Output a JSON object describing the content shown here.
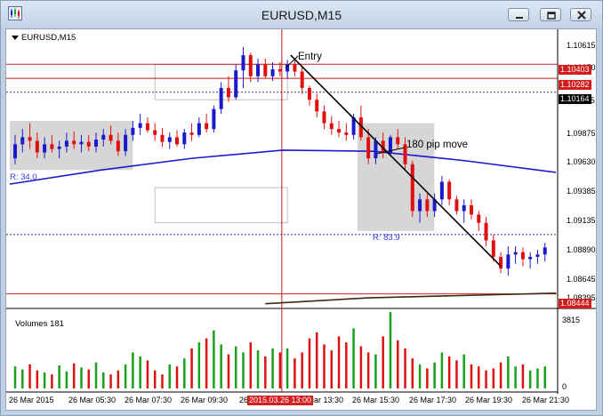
{
  "window": {
    "title": "EURUSD,M15",
    "buttons": [
      "minimize",
      "restore",
      "close"
    ]
  },
  "chart": {
    "symbol_label": "EURUSD,M15",
    "volumes_label": "Volumes 181",
    "price_ticks": [
      "1.10615",
      "1.10370",
      "1.10115",
      "1.09875",
      "1.09630",
      "1.09385",
      "1.09135",
      "1.08890",
      "1.08645",
      "1.08395"
    ],
    "price_boxes": [
      {
        "text": "1.10403",
        "color": "#d21b1b"
      },
      {
        "text": "1.10282",
        "color": "#d21b1b"
      },
      {
        "text": "1.10164",
        "color": "#000000"
      },
      {
        "text": "1.08444",
        "color": "#d21b1b"
      }
    ],
    "volume_ticks": [
      "3815",
      "0"
    ],
    "time_labels": [
      "26 Mar 2015",
      "26 Mar 05:30",
      "26 Mar 07:30",
      "26 Mar 09:30",
      "26 Mar 11:30",
      "26 Mar 13:30",
      "26 Mar 15:30",
      "26 Mar 17:30",
      "26 Mar 19:30",
      "26 Mar 21:30"
    ],
    "crosshair_time": "2015.03.26 13:00",
    "annotations": {
      "entry": "Entry",
      "pip_move": "180 pip move",
      "ratio_left": "R: 34.0",
      "ratio_right": "R: 83.9"
    },
    "colors": {
      "bull": "#1a1acc",
      "bear": "#e01010",
      "volume_up": "#1aa01a",
      "volume_down": "#e01010",
      "ma": "#1a1acc",
      "ma_slow": "#3a2a10",
      "level": "#d21b1b"
    }
  },
  "chart_data": {
    "type": "candlestick",
    "symbol": "EURUSD",
    "timeframe": "M15",
    "y_range": [
      1.0835,
      1.1067
    ],
    "candles": [
      [
        1.096,
        1.098,
        1.0955,
        1.0972
      ],
      [
        1.0972,
        1.0985,
        1.0965,
        1.0978
      ],
      [
        1.0978,
        1.099,
        1.0968,
        1.0975
      ],
      [
        1.0975,
        1.0982,
        1.096,
        1.0965
      ],
      [
        1.0965,
        1.0978,
        1.096,
        1.0972
      ],
      [
        1.0972,
        1.098,
        1.0965,
        1.0968
      ],
      [
        1.0968,
        1.0975,
        1.096,
        1.097
      ],
      [
        1.097,
        1.0982,
        1.0965,
        1.0975
      ],
      [
        1.0975,
        1.0983,
        1.0968,
        1.0972
      ],
      [
        1.0972,
        1.098,
        1.0965,
        1.0974
      ],
      [
        1.0974,
        1.098,
        1.0966,
        1.097
      ],
      [
        1.097,
        1.0982,
        1.0965,
        1.0976
      ],
      [
        1.0976,
        1.0985,
        1.097,
        1.098
      ],
      [
        1.098,
        1.0988,
        1.0972,
        1.0975
      ],
      [
        1.0975,
        1.0982,
        1.0962,
        1.0966
      ],
      [
        1.0966,
        1.0985,
        1.0962,
        1.098
      ],
      [
        1.098,
        1.0992,
        1.0975,
        1.0986
      ],
      [
        1.0986,
        1.0998,
        1.098,
        1.099
      ],
      [
        1.099,
        1.0995,
        1.0982,
        1.0984
      ],
      [
        1.0984,
        1.099,
        1.0975,
        1.098
      ],
      [
        1.098,
        1.0986,
        1.097,
        1.0974
      ],
      [
        1.0974,
        1.0982,
        1.0968,
        1.0978
      ],
      [
        1.0978,
        1.0984,
        1.097,
        1.0972
      ],
      [
        1.0972,
        1.0985,
        1.0968,
        1.0982
      ],
      [
        1.0982,
        1.099,
        1.0975,
        1.098
      ],
      [
        1.098,
        1.0995,
        1.0978,
        1.099
      ],
      [
        1.099,
        1.0998,
        1.0982,
        1.0985
      ],
      [
        1.0985,
        1.1005,
        1.0982,
        1.1002
      ],
      [
        1.1002,
        1.1025,
        1.0998,
        1.102
      ],
      [
        1.102,
        1.103,
        1.1008,
        1.1012
      ],
      [
        1.1012,
        1.104,
        1.101,
        1.1035
      ],
      [
        1.1035,
        1.1055,
        1.102,
        1.1048
      ],
      [
        1.1048,
        1.105,
        1.1025,
        1.103
      ],
      [
        1.103,
        1.1045,
        1.1025,
        1.104
      ],
      [
        1.104,
        1.1045,
        1.1028,
        1.103
      ],
      [
        1.103,
        1.1042,
        1.1026,
        1.1036
      ],
      [
        1.1036,
        1.1042,
        1.103,
        1.1034
      ],
      [
        1.1034,
        1.1044,
        1.1028,
        1.104
      ],
      [
        1.104,
        1.1045,
        1.103,
        1.1034
      ],
      [
        1.1034,
        1.1038,
        1.1015,
        1.102
      ],
      [
        1.102,
        1.1022,
        1.1005,
        1.101
      ],
      [
        1.101,
        1.1015,
        1.0995,
        1.1
      ],
      [
        1.1,
        1.1005,
        1.0985,
        1.099
      ],
      [
        1.099,
        1.0996,
        1.098,
        1.0985
      ],
      [
        1.0985,
        1.0992,
        1.0978,
        1.0982
      ],
      [
        1.0982,
        1.099,
        1.0975,
        1.098
      ],
      [
        1.098,
        1.0998,
        1.0976,
        1.0995
      ],
      [
        1.0995,
        1.1005,
        1.0975,
        1.0978
      ],
      [
        1.0978,
        1.0985,
        1.0955,
        1.096
      ],
      [
        1.096,
        1.0978,
        1.0955,
        1.0975
      ],
      [
        1.0975,
        1.0982,
        1.096,
        1.0965
      ],
      [
        1.0965,
        1.098,
        1.0962,
        1.0978
      ],
      [
        1.0978,
        1.0985,
        1.0968,
        1.0972
      ],
      [
        1.0972,
        1.0978,
        1.095,
        1.0955
      ],
      [
        1.0955,
        1.0958,
        1.091,
        1.0915
      ],
      [
        1.0915,
        1.093,
        1.0905,
        1.0925
      ],
      [
        1.0925,
        1.093,
        1.091,
        1.0915
      ],
      [
        1.0915,
        1.093,
        1.091,
        1.0925
      ],
      [
        1.0925,
        1.0945,
        1.092,
        1.094
      ],
      [
        1.094,
        1.0942,
        1.092,
        1.0925
      ],
      [
        1.0925,
        1.0928,
        1.0912,
        1.0915
      ],
      [
        1.0915,
        1.0925,
        1.0905,
        1.092
      ],
      [
        1.092,
        1.0925,
        1.0908,
        1.0912
      ],
      [
        1.0912,
        1.0915,
        1.0898,
        1.0905
      ],
      [
        1.0905,
        1.091,
        1.0885,
        1.089
      ],
      [
        1.089,
        1.0895,
        1.0872,
        1.0876
      ],
      [
        1.0876,
        1.088,
        1.0862,
        1.0866
      ],
      [
        1.0866,
        1.0885,
        1.086,
        1.0878
      ],
      [
        1.0878,
        1.0885,
        1.087,
        1.088
      ],
      [
        1.088,
        1.0884,
        1.0868,
        1.0874
      ],
      [
        1.0874,
        1.088,
        1.0866,
        1.0876
      ],
      [
        1.0876,
        1.0882,
        1.087,
        1.0878
      ],
      [
        1.0878,
        1.0888,
        1.0872,
        1.0884
      ]
    ],
    "volumes": [
      1100,
      950,
      1200,
      900,
      800,
      700,
      1150,
      850,
      1250,
      1050,
      950,
      1300,
      800,
      700,
      900,
      1200,
      1800,
      1600,
      1400,
      900,
      700,
      1200,
      1100,
      1500,
      2000,
      2300,
      2500,
      2900,
      2200,
      1700,
      2100,
      1800,
      2300,
      1900,
      1600,
      2000,
      1800,
      2000,
      1500,
      1800,
      2500,
      2800,
      2200,
      1900,
      2600,
      2300,
      3000,
      2100,
      1800,
      1700,
      2600,
      3815,
      2400,
      2000,
      1500,
      1200,
      1000,
      1300,
      1800,
      1600,
      1400,
      1700,
      1200,
      1100,
      900,
      1000,
      1300,
      1600,
      1100,
      1200,
      900,
      1000,
      1100
    ],
    "indicators": {
      "moving_average": [
        1.0938,
        1.095,
        1.096,
        1.0967,
        1.0966,
        1.0958,
        1.0948
      ],
      "levels": [
        1.10403,
        1.10282,
        1.10164,
        1.08444
      ],
      "trend_line": [
        [
          1.1048,
          1.0868
        ]
      ],
      "ratios": [
        "R: 34.0",
        "R: 83.9"
      ]
    }
  }
}
